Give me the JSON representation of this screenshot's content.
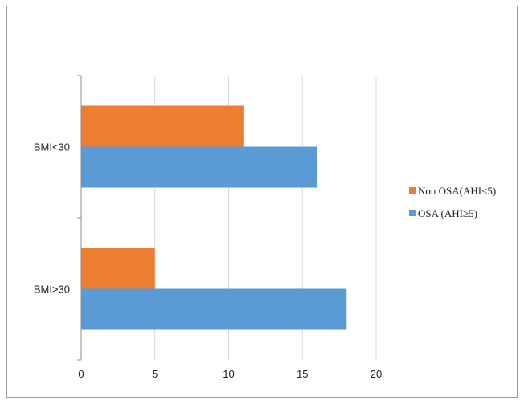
{
  "chart_data": {
    "type": "bar",
    "orientation": "horizontal",
    "categories": [
      "BMI<30",
      "BMI>30"
    ],
    "series": [
      {
        "name": "Non OSA(AHI<5)",
        "color": "#ED7D31",
        "values": [
          11,
          5
        ]
      },
      {
        "name": "OSA (AHI≥5)",
        "color": "#5B9BD5",
        "values": [
          16,
          18
        ]
      }
    ],
    "xlim": [
      0,
      20
    ],
    "x_ticks": [
      "0",
      "5",
      "10",
      "15",
      "20"
    ],
    "grid": true,
    "legend_position": "right",
    "title": "",
    "xlabel": "",
    "ylabel": ""
  }
}
